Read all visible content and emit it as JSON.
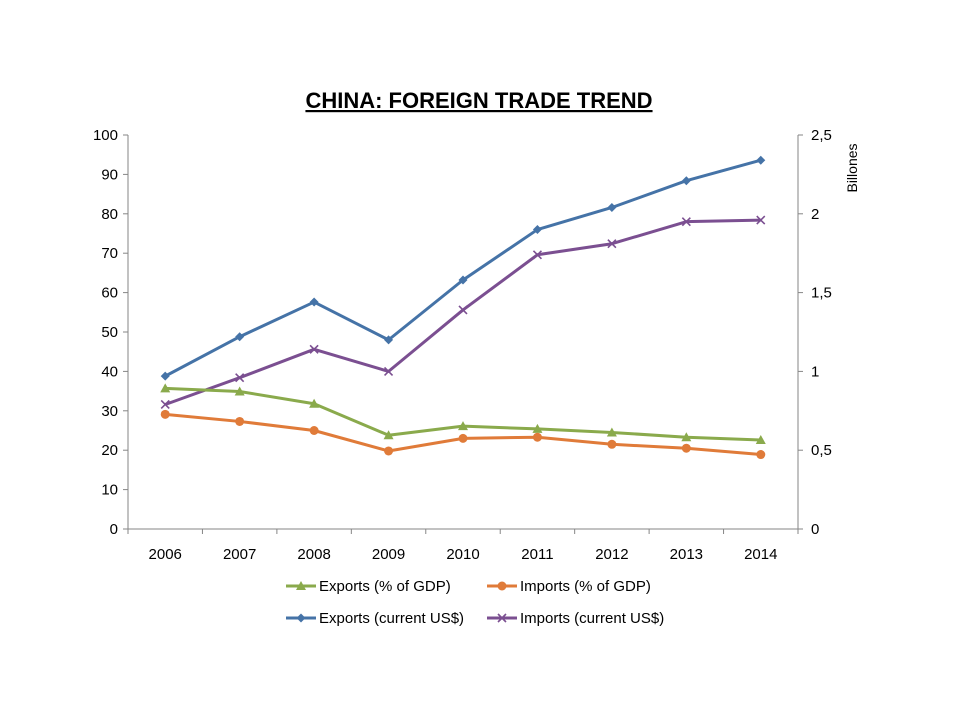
{
  "chart_data": {
    "type": "line",
    "title": "CHINA: FOREIGN TRADE TREND",
    "categories": [
      "2006",
      "2007",
      "2008",
      "2009",
      "2010",
      "2011",
      "2012",
      "2013",
      "2014"
    ],
    "y_left": {
      "range": [
        0,
        100
      ],
      "ticks": [
        "0",
        "10",
        "20",
        "30",
        "40",
        "50",
        "60",
        "70",
        "80",
        "90",
        "100"
      ]
    },
    "y_right": {
      "range": [
        0,
        2.5
      ],
      "label": "Billones",
      "ticks": [
        "0",
        "0,5",
        "1",
        "1,5",
        "2",
        "2,5"
      ]
    },
    "grid": false,
    "legend_position": "bottom",
    "series": [
      {
        "name": "Exports  (% of GDP)",
        "axis": "left",
        "marker": "triangle",
        "color": "#8aaa4c",
        "values": [
          35.7,
          34.9,
          31.8,
          23.8,
          26.1,
          25.4,
          24.5,
          23.3,
          22.6
        ]
      },
      {
        "name": "Imports (% of GDP)",
        "axis": "left",
        "marker": "circle",
        "color": "#e07b39",
        "values": [
          29.1,
          27.3,
          25.0,
          19.8,
          23.0,
          23.3,
          21.5,
          20.5,
          18.9
        ]
      },
      {
        "name": "Exports (current US$)",
        "axis": "right",
        "marker": "diamond",
        "color": "#4573a7",
        "values": [
          0.97,
          1.22,
          1.44,
          1.2,
          1.58,
          1.9,
          2.04,
          2.21,
          2.34
        ]
      },
      {
        "name": "Imports (current US$)",
        "axis": "right",
        "marker": "x",
        "color": "#7b4f91",
        "values": [
          0.79,
          0.96,
          1.14,
          1.0,
          1.39,
          1.74,
          1.81,
          1.95,
          1.96
        ]
      }
    ]
  }
}
